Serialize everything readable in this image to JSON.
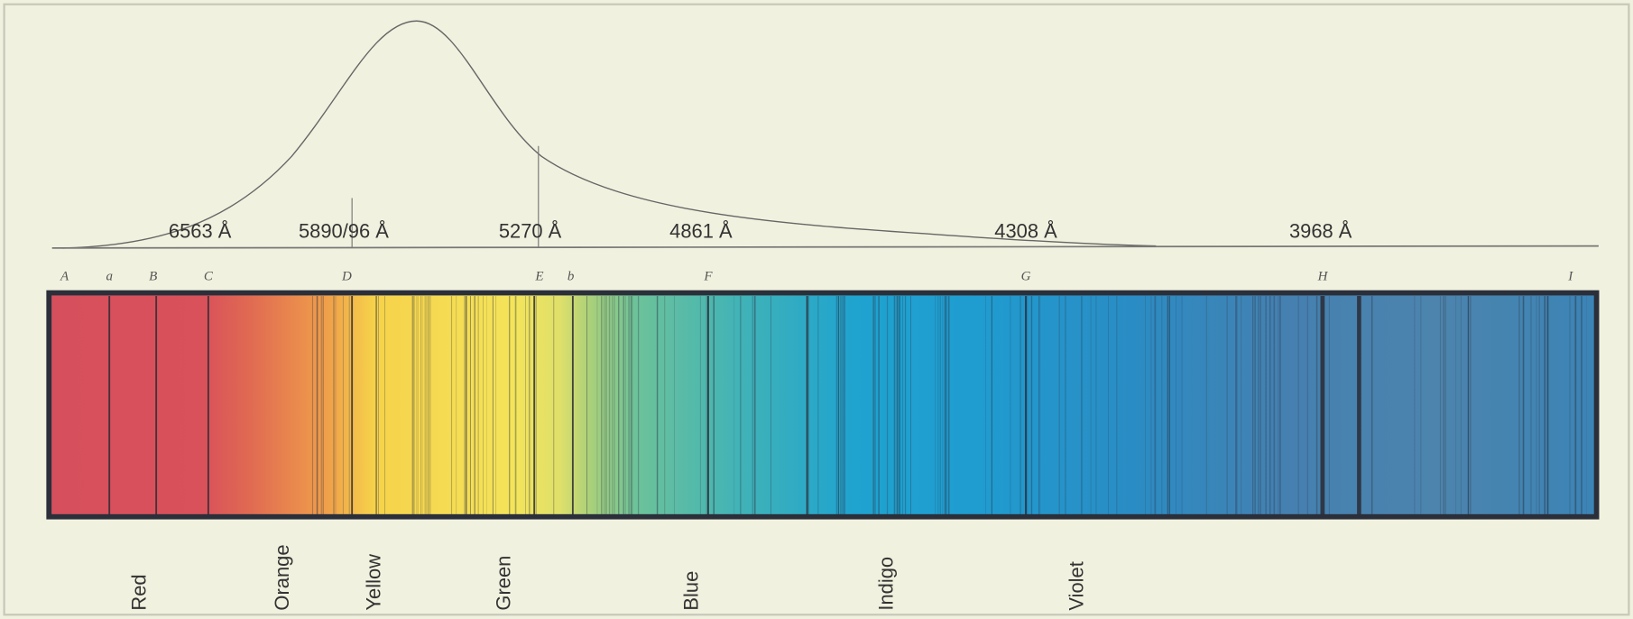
{
  "wavelength_labels": [
    "6563 Å",
    "5890/96 Å",
    "5270 Å",
    "4861 Å",
    "4308 Å",
    "3968 Å"
  ],
  "line_letters": [
    "A",
    "a",
    "B",
    "C",
    "D",
    "E",
    "b",
    "F",
    "G",
    "H",
    "I"
  ],
  "color_names": [
    "Red",
    "Orange",
    "Yellow",
    "Green",
    "Blue",
    "Indigo",
    "Violet"
  ]
}
